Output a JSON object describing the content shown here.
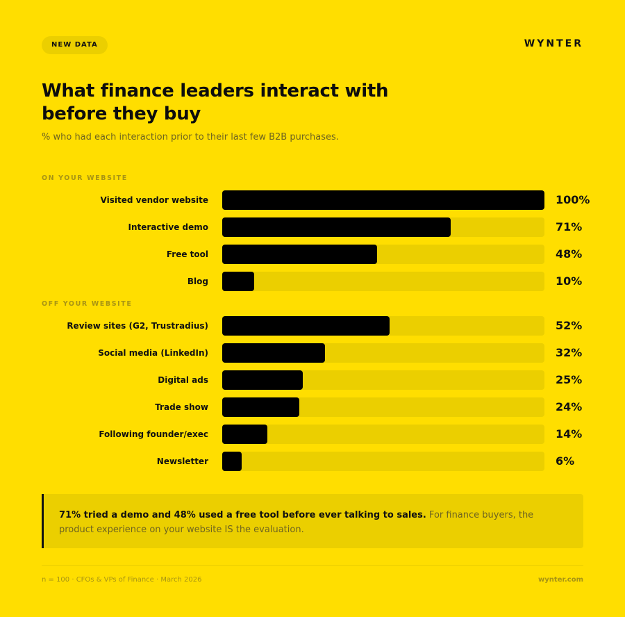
{
  "header": {
    "badge": "NEW DATA",
    "brand": "WYNTER"
  },
  "title": "What finance leaders interact with before they buy",
  "subtitle": "% who had each interaction prior to their last few B2B purchases.",
  "colors": {
    "background": "#FFDE00",
    "track": "#EBCF00",
    "bar": "#000000",
    "muted": "#A89414"
  },
  "chart_data": {
    "type": "bar",
    "orientation": "horizontal",
    "xlim": [
      0,
      100
    ],
    "unit": "%",
    "sections": [
      {
        "label": "ON YOUR WEBSITE",
        "rows": [
          {
            "label": "Visited vendor website",
            "value": 100,
            "display": "100%"
          },
          {
            "label": "Interactive demo",
            "value": 71,
            "display": "71%"
          },
          {
            "label": "Free tool",
            "value": 48,
            "display": "48%"
          },
          {
            "label": "Blog",
            "value": 10,
            "display": "10%"
          }
        ]
      },
      {
        "label": "OFF YOUR WEBSITE",
        "rows": [
          {
            "label": "Review sites (G2, Trustradius)",
            "value": 52,
            "display": "52%"
          },
          {
            "label": "Social media (LinkedIn)",
            "value": 32,
            "display": "32%"
          },
          {
            "label": "Digital ads",
            "value": 25,
            "display": "25%"
          },
          {
            "label": "Trade show",
            "value": 24,
            "display": "24%"
          },
          {
            "label": "Following founder/exec",
            "value": 14,
            "display": "14%"
          },
          {
            "label": "Newsletter",
            "value": 6,
            "display": "6%"
          }
        ]
      }
    ]
  },
  "callout": {
    "bold": "71% tried a demo and 48% used a free tool before ever talking to sales.",
    "text": " For finance buyers, the product experience on your website IS the evaluation."
  },
  "footer": {
    "left": "n = 100 · CFOs & VPs of Finance · March 2026",
    "right": "wynter.com"
  }
}
